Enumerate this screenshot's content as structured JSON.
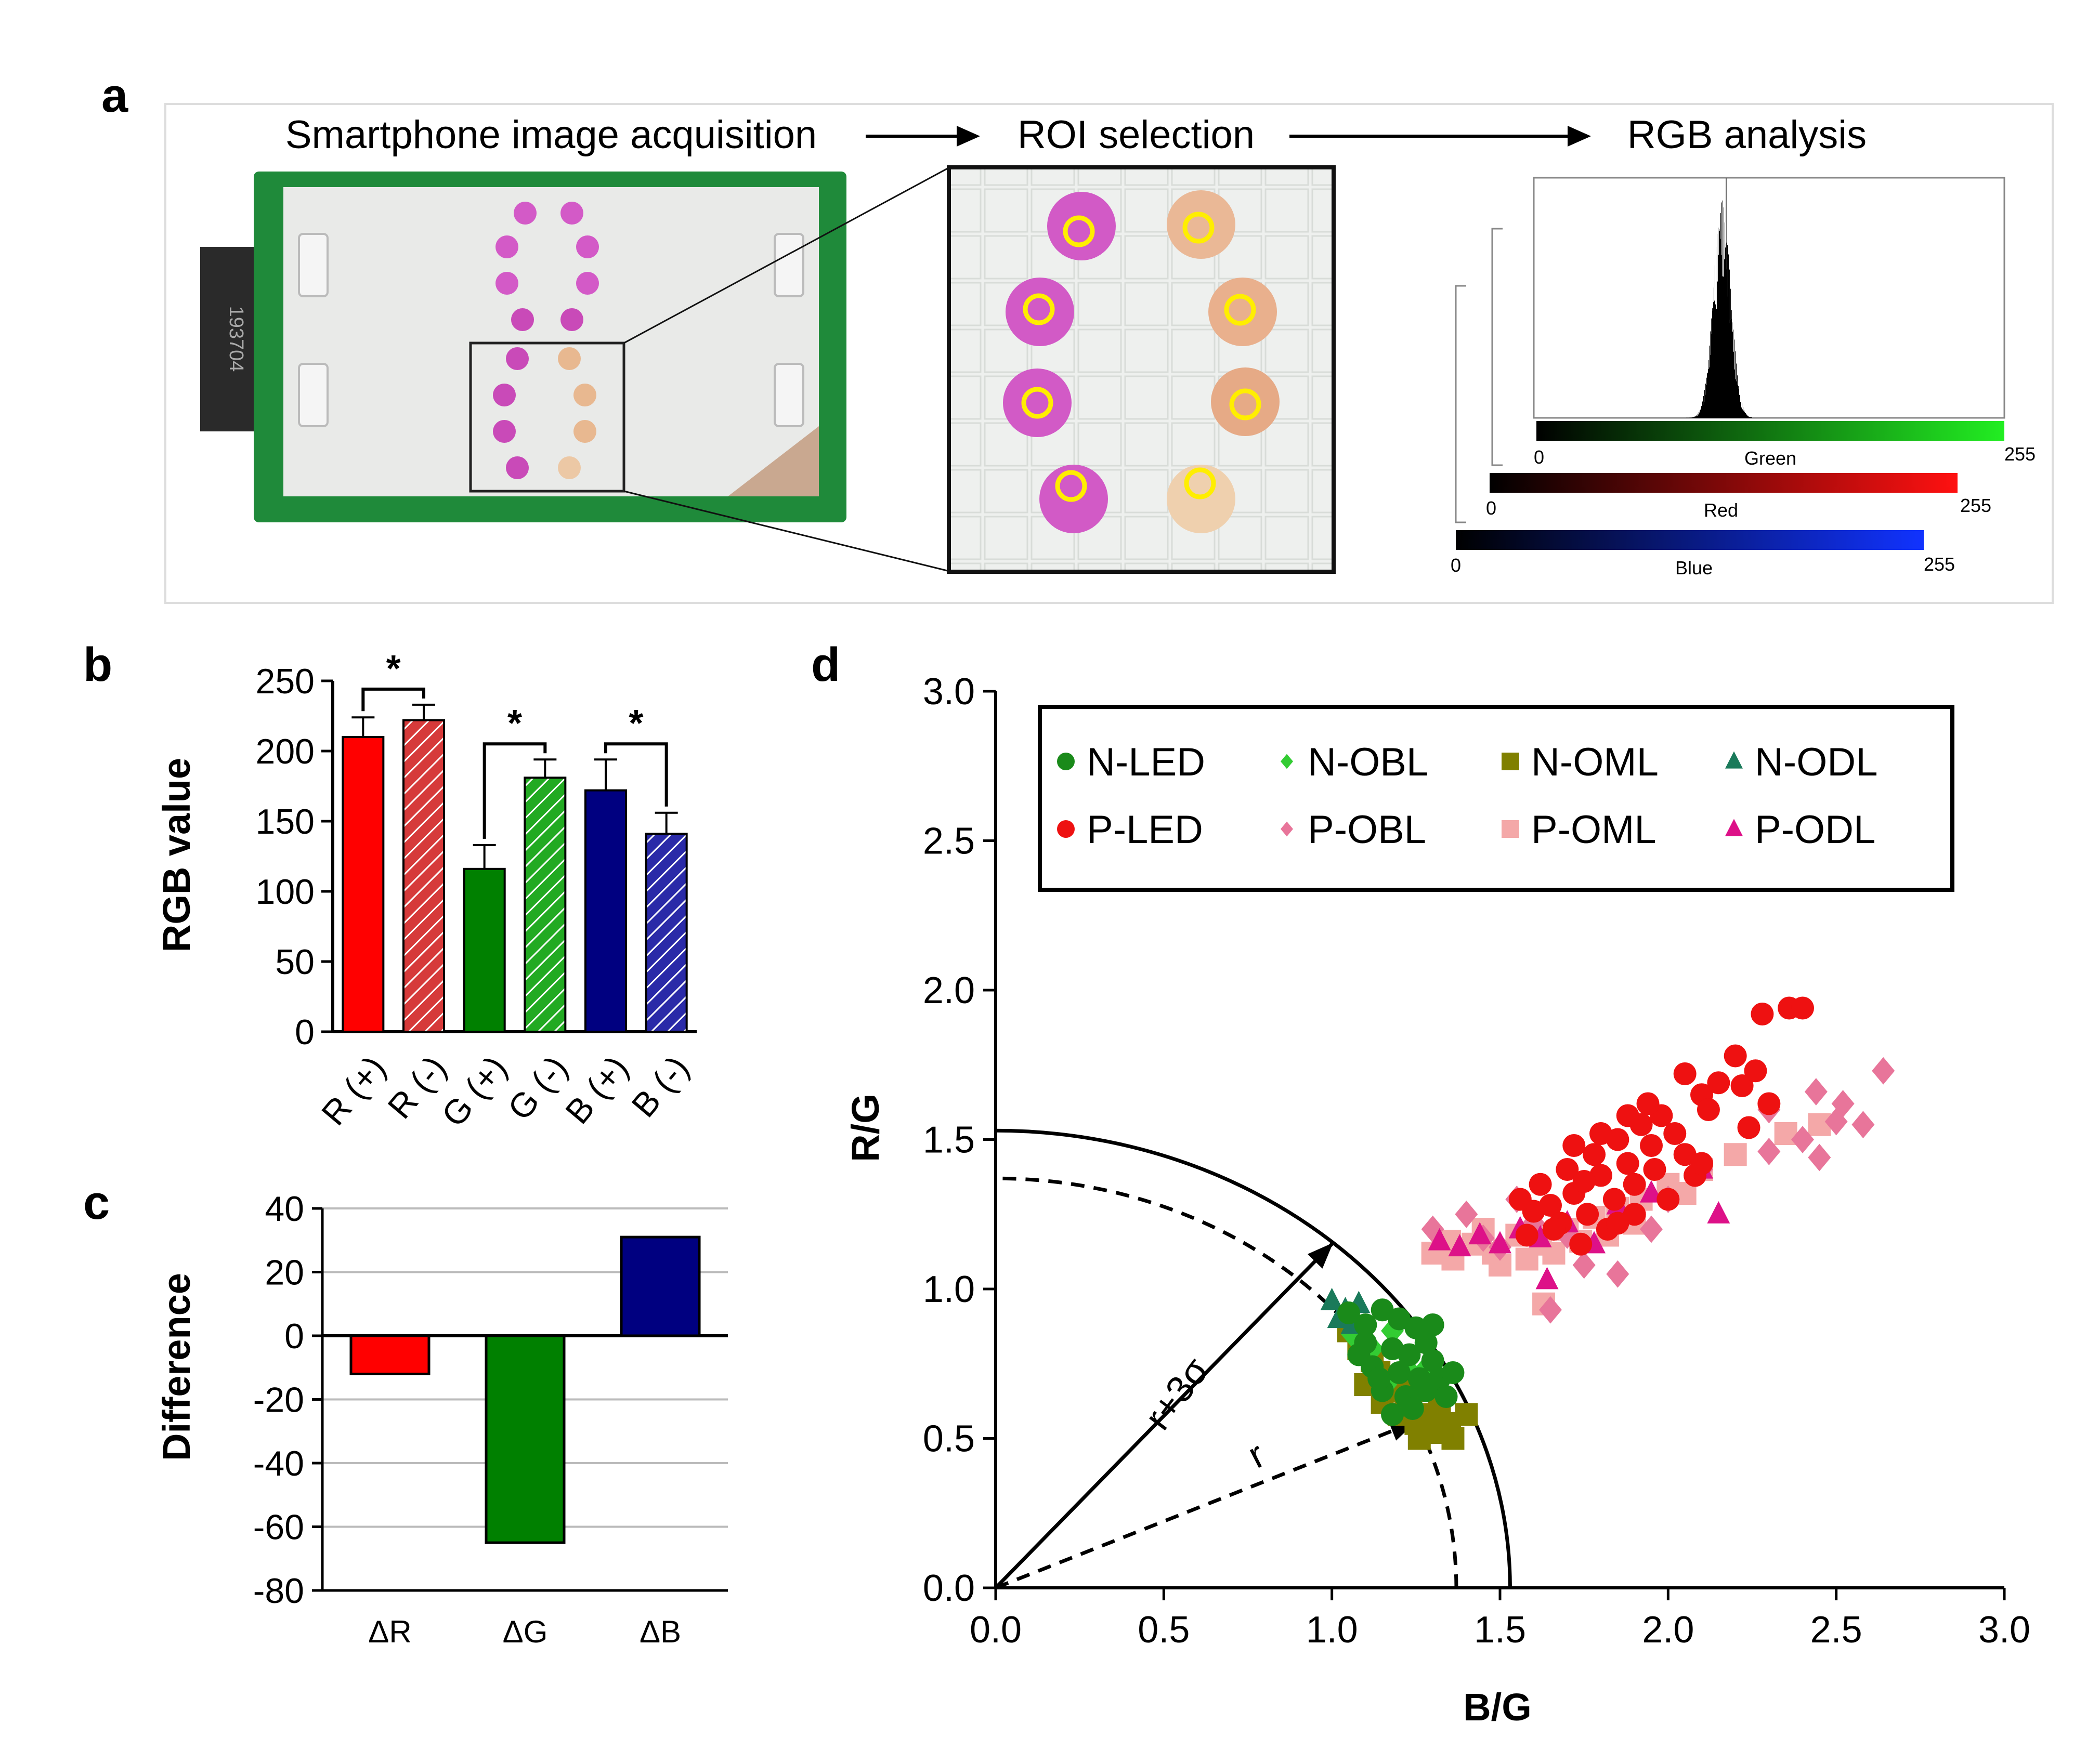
{
  "figure": {
    "panel_labels": {
      "a": "a",
      "b": "b",
      "c": "c",
      "d": "d"
    }
  },
  "panel_a": {
    "step1": "Smartphone image acquisition",
    "step2": "ROI selection",
    "step3": "RGB analysis",
    "device_label": "193704",
    "histograms": [
      {
        "name": "Green",
        "min": "0",
        "max": "255",
        "color": "#22cc22"
      },
      {
        "name": "Red",
        "min": "0",
        "max": "255",
        "color": "#ee1111"
      },
      {
        "name": "Blue",
        "min": "0",
        "max": "255",
        "color": "#1122ee"
      }
    ]
  },
  "chart_data": [
    {
      "id": "b",
      "type": "bar",
      "ylabel": "RGB value",
      "ylim": [
        0,
        250
      ],
      "yticks": [
        "0",
        "50",
        "100",
        "150",
        "200",
        "250"
      ],
      "categories": [
        "R (+)",
        "R (-)",
        "G (+)",
        "G (-)",
        "B (+)",
        "B (-)"
      ],
      "values": [
        210,
        222,
        116,
        181,
        172,
        141
      ],
      "errors": [
        14,
        11,
        17,
        13,
        22,
        15
      ],
      "colors": [
        "#ff0000",
        "#d63a3a",
        "#008000",
        "#33cc33",
        "#000080",
        "#3333cc"
      ],
      "hatched": [
        false,
        true,
        false,
        true,
        false,
        true
      ],
      "significance": [
        {
          "pair": [
            "R (+)",
            "R (-)"
          ],
          "label": "*"
        },
        {
          "pair": [
            "G (+)",
            "G (-)"
          ],
          "label": "*"
        },
        {
          "pair": [
            "B (+)",
            "B (-)"
          ],
          "label": "*"
        }
      ]
    },
    {
      "id": "c",
      "type": "bar",
      "ylabel": "Difference",
      "ylim": [
        -80,
        40
      ],
      "yticks": [
        "-80",
        "-60",
        "-40",
        "-20",
        "0",
        "20",
        "40"
      ],
      "grid": true,
      "categories": [
        "ΔR",
        "ΔG",
        "ΔB"
      ],
      "values": [
        -12,
        -65,
        31
      ],
      "colors": [
        "#ff0000",
        "#008000",
        "#000080"
      ]
    },
    {
      "id": "d",
      "type": "scatter",
      "xlabel": "B/G",
      "ylabel": "R/G",
      "xlim": [
        0,
        3
      ],
      "ylim": [
        0,
        3
      ],
      "xticks": [
        "0.0",
        "0.5",
        "1.0",
        "1.5",
        "2.0",
        "2.5",
        "3.0"
      ],
      "yticks": [
        "0.0",
        "0.5",
        "1.0",
        "1.5",
        "2.0",
        "2.5",
        "3.0"
      ],
      "legend_position": "top",
      "threshold": {
        "r": 1.37,
        "r_plus_3sigma": 1.53,
        "label_r": "r",
        "label_r3s": "r+3σ"
      },
      "series": [
        {
          "name": "N-LED",
          "marker": "circle",
          "color": "#1a8a1a",
          "points": [
            [
              1.05,
              0.92
            ],
            [
              1.1,
              0.88
            ],
            [
              1.15,
              0.93
            ],
            [
              1.2,
              0.9
            ],
            [
              1.25,
              0.87
            ],
            [
              1.1,
              0.82
            ],
            [
              1.18,
              0.8
            ],
            [
              1.23,
              0.78
            ],
            [
              1.28,
              0.82
            ],
            [
              1.3,
              0.76
            ],
            [
              1.12,
              0.74
            ],
            [
              1.2,
              0.72
            ],
            [
              1.26,
              0.7
            ],
            [
              1.32,
              0.7
            ],
            [
              1.15,
              0.66
            ],
            [
              1.22,
              0.64
            ],
            [
              1.28,
              0.66
            ],
            [
              1.34,
              0.64
            ],
            [
              1.08,
              0.78
            ],
            [
              1.14,
              0.7
            ],
            [
              1.3,
              0.88
            ],
            [
              1.24,
              0.6
            ],
            [
              1.18,
              0.58
            ],
            [
              1.36,
              0.72
            ]
          ]
        },
        {
          "name": "N-OBL",
          "marker": "diamond",
          "color": "#33cc33",
          "points": [
            [
              1.06,
              0.85
            ],
            [
              1.12,
              0.8
            ],
            [
              1.18,
              0.86
            ],
            [
              1.22,
              0.74
            ],
            [
              1.27,
              0.72
            ],
            [
              1.16,
              0.68
            ]
          ]
        },
        {
          "name": "N-OML",
          "marker": "square",
          "color": "#808000",
          "points": [
            [
              1.05,
              0.86
            ],
            [
              1.08,
              0.8
            ],
            [
              1.12,
              0.76
            ],
            [
              1.1,
              0.68
            ],
            [
              1.15,
              0.62
            ],
            [
              1.2,
              0.58
            ],
            [
              1.25,
              0.55
            ],
            [
              1.3,
              0.52
            ],
            [
              1.35,
              0.55
            ],
            [
              1.4,
              0.58
            ],
            [
              1.18,
              0.66
            ],
            [
              1.22,
              0.6
            ],
            [
              1.28,
              0.58
            ],
            [
              1.32,
              0.62
            ],
            [
              1.36,
              0.5
            ],
            [
              1.26,
              0.5
            ],
            [
              1.14,
              0.72
            ],
            [
              1.24,
              0.66
            ],
            [
              1.3,
              0.56
            ]
          ]
        },
        {
          "name": "N-ODL",
          "marker": "triangle",
          "color": "#1a7a5a",
          "points": [
            [
              1.0,
              0.96
            ],
            [
              1.04,
              0.93
            ],
            [
              1.08,
              0.95
            ],
            [
              1.02,
              0.9
            ],
            [
              1.06,
              0.88
            ]
          ]
        },
        {
          "name": "P-LED",
          "marker": "circle",
          "color": "#ee1111",
          "points": [
            [
              2.28,
              1.92
            ],
            [
              2.36,
              1.94
            ],
            [
              2.4,
              1.94
            ],
            [
              2.2,
              1.78
            ],
            [
              2.1,
              1.65
            ],
            [
              2.05,
              1.72
            ],
            [
              2.15,
              1.69
            ],
            [
              2.12,
              1.6
            ],
            [
              2.22,
              1.68
            ],
            [
              2.3,
              1.62
            ],
            [
              2.24,
              1.54
            ],
            [
              2.26,
              1.73
            ],
            [
              1.62,
              1.35
            ],
            [
              1.7,
              1.4
            ],
            [
              1.78,
              1.45
            ],
            [
              1.85,
              1.5
            ],
            [
              1.92,
              1.55
            ],
            [
              1.98,
              1.58
            ],
            [
              1.65,
              1.28
            ],
            [
              1.72,
              1.32
            ],
            [
              1.8,
              1.38
            ],
            [
              1.88,
              1.42
            ],
            [
              1.95,
              1.48
            ],
            [
              2.02,
              1.52
            ],
            [
              1.68,
              1.22
            ],
            [
              1.76,
              1.25
            ],
            [
              1.84,
              1.3
            ],
            [
              1.9,
              1.35
            ],
            [
              1.96,
              1.4
            ],
            [
              2.05,
              1.45
            ],
            [
              1.58,
              1.18
            ],
            [
              1.66,
              1.2
            ],
            [
              1.74,
              1.15
            ],
            [
              1.82,
              1.2
            ],
            [
              1.9,
              1.25
            ],
            [
              2.0,
              1.3
            ],
            [
              2.08,
              1.38
            ],
            [
              1.72,
              1.48
            ],
            [
              1.8,
              1.52
            ],
            [
              1.88,
              1.58
            ],
            [
              1.6,
              1.26
            ],
            [
              1.75,
              1.36
            ],
            [
              2.1,
              1.42
            ],
            [
              1.94,
              1.62
            ],
            [
              1.56,
              1.3
            ],
            [
              1.85,
              1.22
            ]
          ]
        },
        {
          "name": "P-OBL",
          "marker": "diamond",
          "color": "#e8759a",
          "points": [
            [
              2.64,
              1.73
            ],
            [
              2.52,
              1.62
            ],
            [
              2.44,
              1.66
            ],
            [
              2.5,
              1.56
            ],
            [
              2.4,
              1.5
            ],
            [
              2.3,
              1.46
            ],
            [
              2.58,
              1.55
            ],
            [
              2.45,
              1.44
            ],
            [
              2.3,
              1.6
            ],
            [
              1.3,
              1.2
            ],
            [
              1.4,
              1.25
            ],
            [
              1.45,
              1.17
            ],
            [
              1.55,
              1.3
            ],
            [
              1.6,
              1.22
            ],
            [
              1.65,
              0.93
            ],
            [
              1.85,
              1.05
            ],
            [
              1.75,
              1.08
            ],
            [
              2.0,
              1.3
            ],
            [
              2.1,
              1.4
            ],
            [
              1.5,
              1.14
            ],
            [
              1.7,
              1.18
            ],
            [
              1.95,
              1.2
            ]
          ]
        },
        {
          "name": "P-OML",
          "marker": "square",
          "color": "#f4a8a8",
          "points": [
            [
              1.3,
              1.12
            ],
            [
              1.36,
              1.1
            ],
            [
              1.42,
              1.15
            ],
            [
              1.48,
              1.12
            ],
            [
              1.55,
              1.18
            ],
            [
              1.62,
              1.15
            ],
            [
              1.7,
              1.2
            ],
            [
              1.78,
              1.24
            ],
            [
              1.85,
              1.27
            ],
            [
              1.92,
              1.3
            ],
            [
              2.0,
              1.35
            ],
            [
              2.1,
              1.4
            ],
            [
              2.2,
              1.45
            ],
            [
              2.35,
              1.52
            ],
            [
              2.45,
              1.55
            ],
            [
              1.63,
              0.95
            ],
            [
              1.5,
              1.08
            ],
            [
              1.58,
              1.1
            ],
            [
              1.66,
              1.12
            ],
            [
              1.74,
              1.16
            ],
            [
              1.82,
              1.18
            ],
            [
              1.9,
              1.22
            ],
            [
              1.35,
              1.16
            ],
            [
              1.45,
              1.2
            ],
            [
              2.05,
              1.32
            ]
          ]
        },
        {
          "name": "P-ODL",
          "marker": "triangle",
          "color": "#dd1188",
          "points": [
            [
              1.32,
              1.16
            ],
            [
              1.38,
              1.14
            ],
            [
              1.44,
              1.18
            ],
            [
              1.5,
              1.15
            ],
            [
              1.56,
              1.2
            ],
            [
              1.62,
              1.17
            ],
            [
              1.7,
              1.22
            ],
            [
              1.64,
              1.03
            ],
            [
              2.1,
              1.4
            ],
            [
              2.15,
              1.25
            ],
            [
              1.85,
              1.28
            ],
            [
              1.95,
              1.32
            ],
            [
              1.78,
              1.15
            ]
          ]
        }
      ]
    }
  ]
}
